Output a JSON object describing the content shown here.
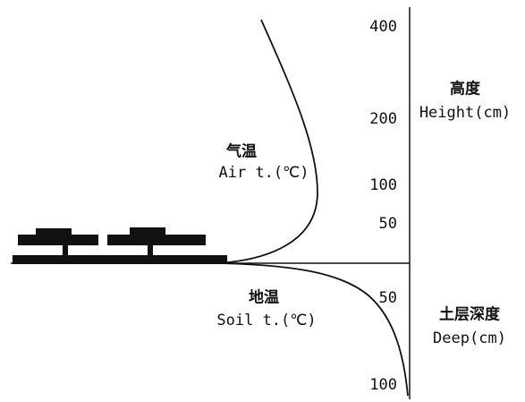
{
  "labels": {
    "air": {
      "zh": "气温",
      "en": "Air t.(℃)"
    },
    "soil": {
      "zh": "地温",
      "en": "Soil t.(℃)"
    },
    "height": {
      "zh": "高度",
      "en": "Height(cm)"
    },
    "depth": {
      "zh": "土层深度",
      "en": "Deep(cm)"
    }
  },
  "height_ticks": [
    400,
    200,
    100,
    50
  ],
  "depth_ticks": [
    50,
    100
  ]
}
